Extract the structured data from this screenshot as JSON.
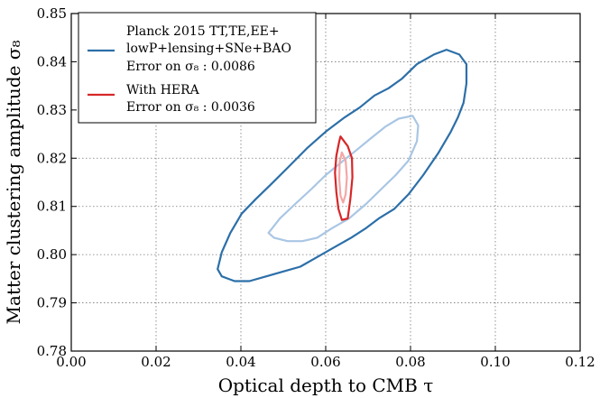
{
  "chart_data": {
    "type": "contour",
    "xlabel": "Optical depth to CMB τ",
    "ylabel": "Matter clustering amplitude σ₈",
    "xlim": [
      0.0,
      0.12
    ],
    "ylim": [
      0.78,
      0.85
    ],
    "x_ticks": [
      "0.00",
      "0.02",
      "0.04",
      "0.06",
      "0.08",
      "0.10",
      "0.12"
    ],
    "y_ticks": [
      "0.78",
      "0.79",
      "0.80",
      "0.81",
      "0.82",
      "0.83",
      "0.84",
      "0.85"
    ],
    "grid": true,
    "legend_position": "top-left",
    "series": [
      {
        "name": "Planck 2015 TT,TE,EE+ lowP+lensing+SNe+BAO",
        "legend_lines": [
          "Planck 2015 TT,TE,EE+",
          "lowP+lensing+SNe+BAO",
          "Error on σ₈ : 0.0086"
        ],
        "color": "#2c6fa8",
        "contours": [
          {
            "level": "outer",
            "color": "#2c6fa8",
            "points": [
              [
                0.0345,
                0.797
              ],
              [
                0.0355,
                0.8005
              ],
              [
                0.0375,
                0.8045
              ],
              [
                0.0402,
                0.8085
              ],
              [
                0.0435,
                0.8115
              ],
              [
                0.047,
                0.8145
              ],
              [
                0.051,
                0.818
              ],
              [
                0.0555,
                0.822
              ],
              [
                0.06,
                0.8255
              ],
              [
                0.0645,
                0.8285
              ],
              [
                0.068,
                0.8305
              ],
              [
                0.0715,
                0.833
              ],
              [
                0.0748,
                0.8345
              ],
              [
                0.078,
                0.8365
              ],
              [
                0.0815,
                0.8395
              ],
              [
                0.0855,
                0.8415
              ],
              [
                0.0885,
                0.8425
              ],
              [
                0.0915,
                0.8415
              ],
              [
                0.0932,
                0.8395
              ],
              [
                0.0932,
                0.8355
              ],
              [
                0.0925,
                0.8315
              ],
              [
                0.0912,
                0.8285
              ],
              [
                0.0895,
                0.8255
              ],
              [
                0.0865,
                0.821
              ],
              [
                0.083,
                0.8165
              ],
              [
                0.0795,
                0.8125
              ],
              [
                0.0762,
                0.8095
              ],
              [
                0.0725,
                0.8075
              ],
              [
                0.0695,
                0.8055
              ],
              [
                0.066,
                0.8035
              ],
              [
                0.062,
                0.8015
              ],
              [
                0.058,
                0.7995
              ],
              [
                0.054,
                0.7975
              ],
              [
                0.05,
                0.7965
              ],
              [
                0.046,
                0.7955
              ],
              [
                0.042,
                0.7945
              ],
              [
                0.0385,
                0.7945
              ],
              [
                0.0355,
                0.7955
              ],
              [
                0.0345,
                0.797
              ]
            ]
          },
          {
            "level": "inner",
            "color": "#a9c6e4",
            "points": [
              [
                0.0465,
                0.8045
              ],
              [
                0.0492,
                0.8075
              ],
              [
                0.0528,
                0.8105
              ],
              [
                0.0565,
                0.8135
              ],
              [
                0.06,
                0.8165
              ],
              [
                0.0635,
                0.819
              ],
              [
                0.067,
                0.8215
              ],
              [
                0.0705,
                0.824
              ],
              [
                0.074,
                0.8265
              ],
              [
                0.0772,
                0.8282
              ],
              [
                0.0805,
                0.8288
              ],
              [
                0.0818,
                0.8268
              ],
              [
                0.0815,
                0.8235
              ],
              [
                0.0795,
                0.8195
              ],
              [
                0.0765,
                0.8165
              ],
              [
                0.073,
                0.8135
              ],
              [
                0.0695,
                0.8105
              ],
              [
                0.0655,
                0.8075
              ],
              [
                0.0615,
                0.8055
              ],
              [
                0.058,
                0.8035
              ],
              [
                0.0545,
                0.8028
              ],
              [
                0.051,
                0.8028
              ],
              [
                0.0478,
                0.8035
              ],
              [
                0.0465,
                0.8045
              ]
            ]
          }
        ]
      },
      {
        "name": "With HERA",
        "legend_lines": [
          "With HERA",
          "Error on σ₈ : 0.0036"
        ],
        "color": "#d62728",
        "contours": [
          {
            "level": "outer",
            "color": "#d62728",
            "points": [
              [
                0.0635,
                0.8245
              ],
              [
                0.0652,
                0.8225
              ],
              [
                0.0662,
                0.82
              ],
              [
                0.0663,
                0.816
              ],
              [
                0.0658,
                0.8115
              ],
              [
                0.0652,
                0.8075
              ],
              [
                0.0638,
                0.8072
              ],
              [
                0.063,
                0.8095
              ],
              [
                0.0625,
                0.813
              ],
              [
                0.0622,
                0.817
              ],
              [
                0.0625,
                0.8205
              ],
              [
                0.0632,
                0.8235
              ],
              [
                0.0635,
                0.8245
              ]
            ]
          },
          {
            "level": "inner",
            "color": "#f4a6a6",
            "points": [
              [
                0.0638,
                0.8212
              ],
              [
                0.0647,
                0.8195
              ],
              [
                0.065,
                0.816
              ],
              [
                0.0647,
                0.8125
              ],
              [
                0.0641,
                0.8108
              ],
              [
                0.0635,
                0.8122
              ],
              [
                0.0632,
                0.8158
              ],
              [
                0.0633,
                0.8192
              ],
              [
                0.0638,
                0.8212
              ]
            ]
          }
        ]
      }
    ]
  }
}
